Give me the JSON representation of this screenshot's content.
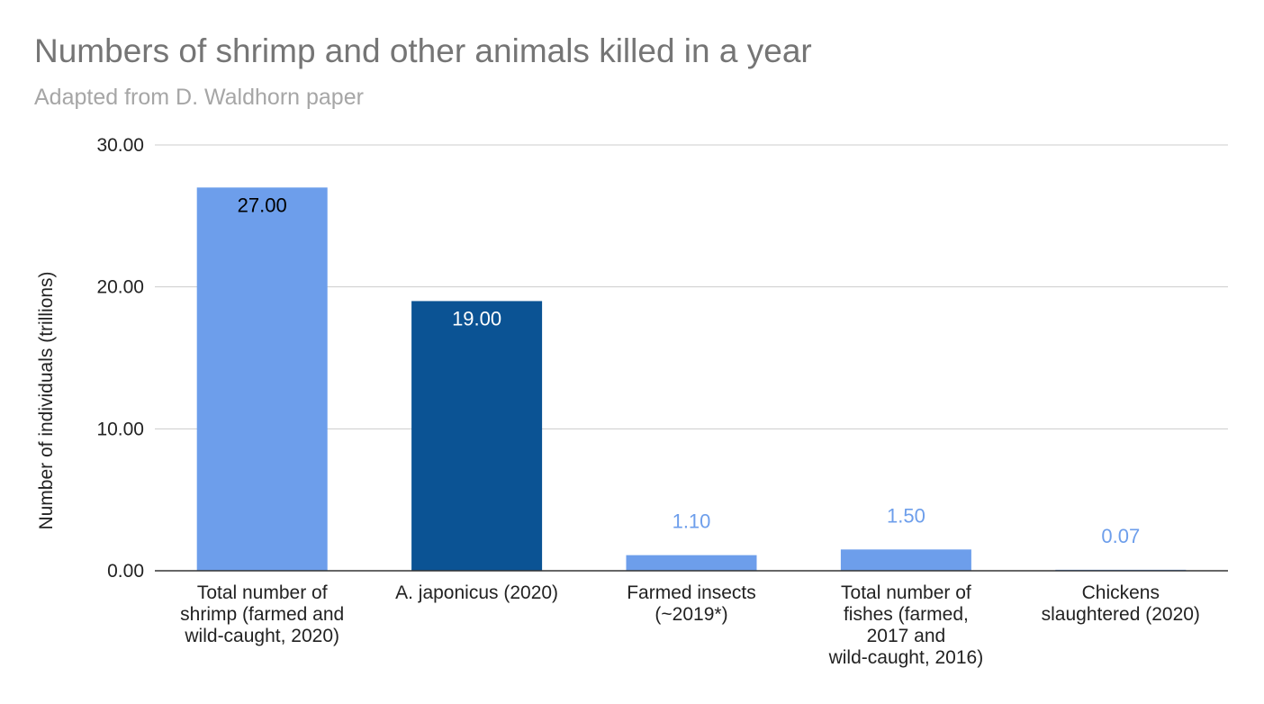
{
  "chart_data": {
    "type": "bar",
    "title": "Numbers of shrimp and other animals killed in a year",
    "subtitle": "Adapted from D. Waldhorn paper",
    "ylabel": "Number of individuals (trillions)",
    "xlabel": "",
    "ylim": [
      0,
      30
    ],
    "yticks": [
      0,
      10,
      20,
      30
    ],
    "ytick_labels": [
      "0.00",
      "10.00",
      "20.00",
      "30.00"
    ],
    "grid": true,
    "categories": [
      [
        "Total number of",
        "shrimp (farmed and",
        "wild-caught, 2020)"
      ],
      [
        "A. japonicus (2020)"
      ],
      [
        "Farmed insects",
        "(~2019*)"
      ],
      [
        "Total number of",
        "fishes (farmed,",
        "2017 and",
        "wild-caught, 2016)"
      ],
      [
        "Chickens",
        "slaughtered (2020)"
      ]
    ],
    "values": [
      27.0,
      19.0,
      1.1,
      1.5,
      0.07
    ],
    "value_labels": [
      "27.00",
      "19.00",
      "1.10",
      "1.50",
      "0.07"
    ],
    "colors": [
      "#6d9eeb",
      "#0b5394",
      "#6d9eeb",
      "#6d9eeb",
      "#6d9eeb"
    ],
    "label_inside_color": [
      "#000000",
      "#ffffff"
    ],
    "label_outside_color": "#6d9eeb"
  }
}
